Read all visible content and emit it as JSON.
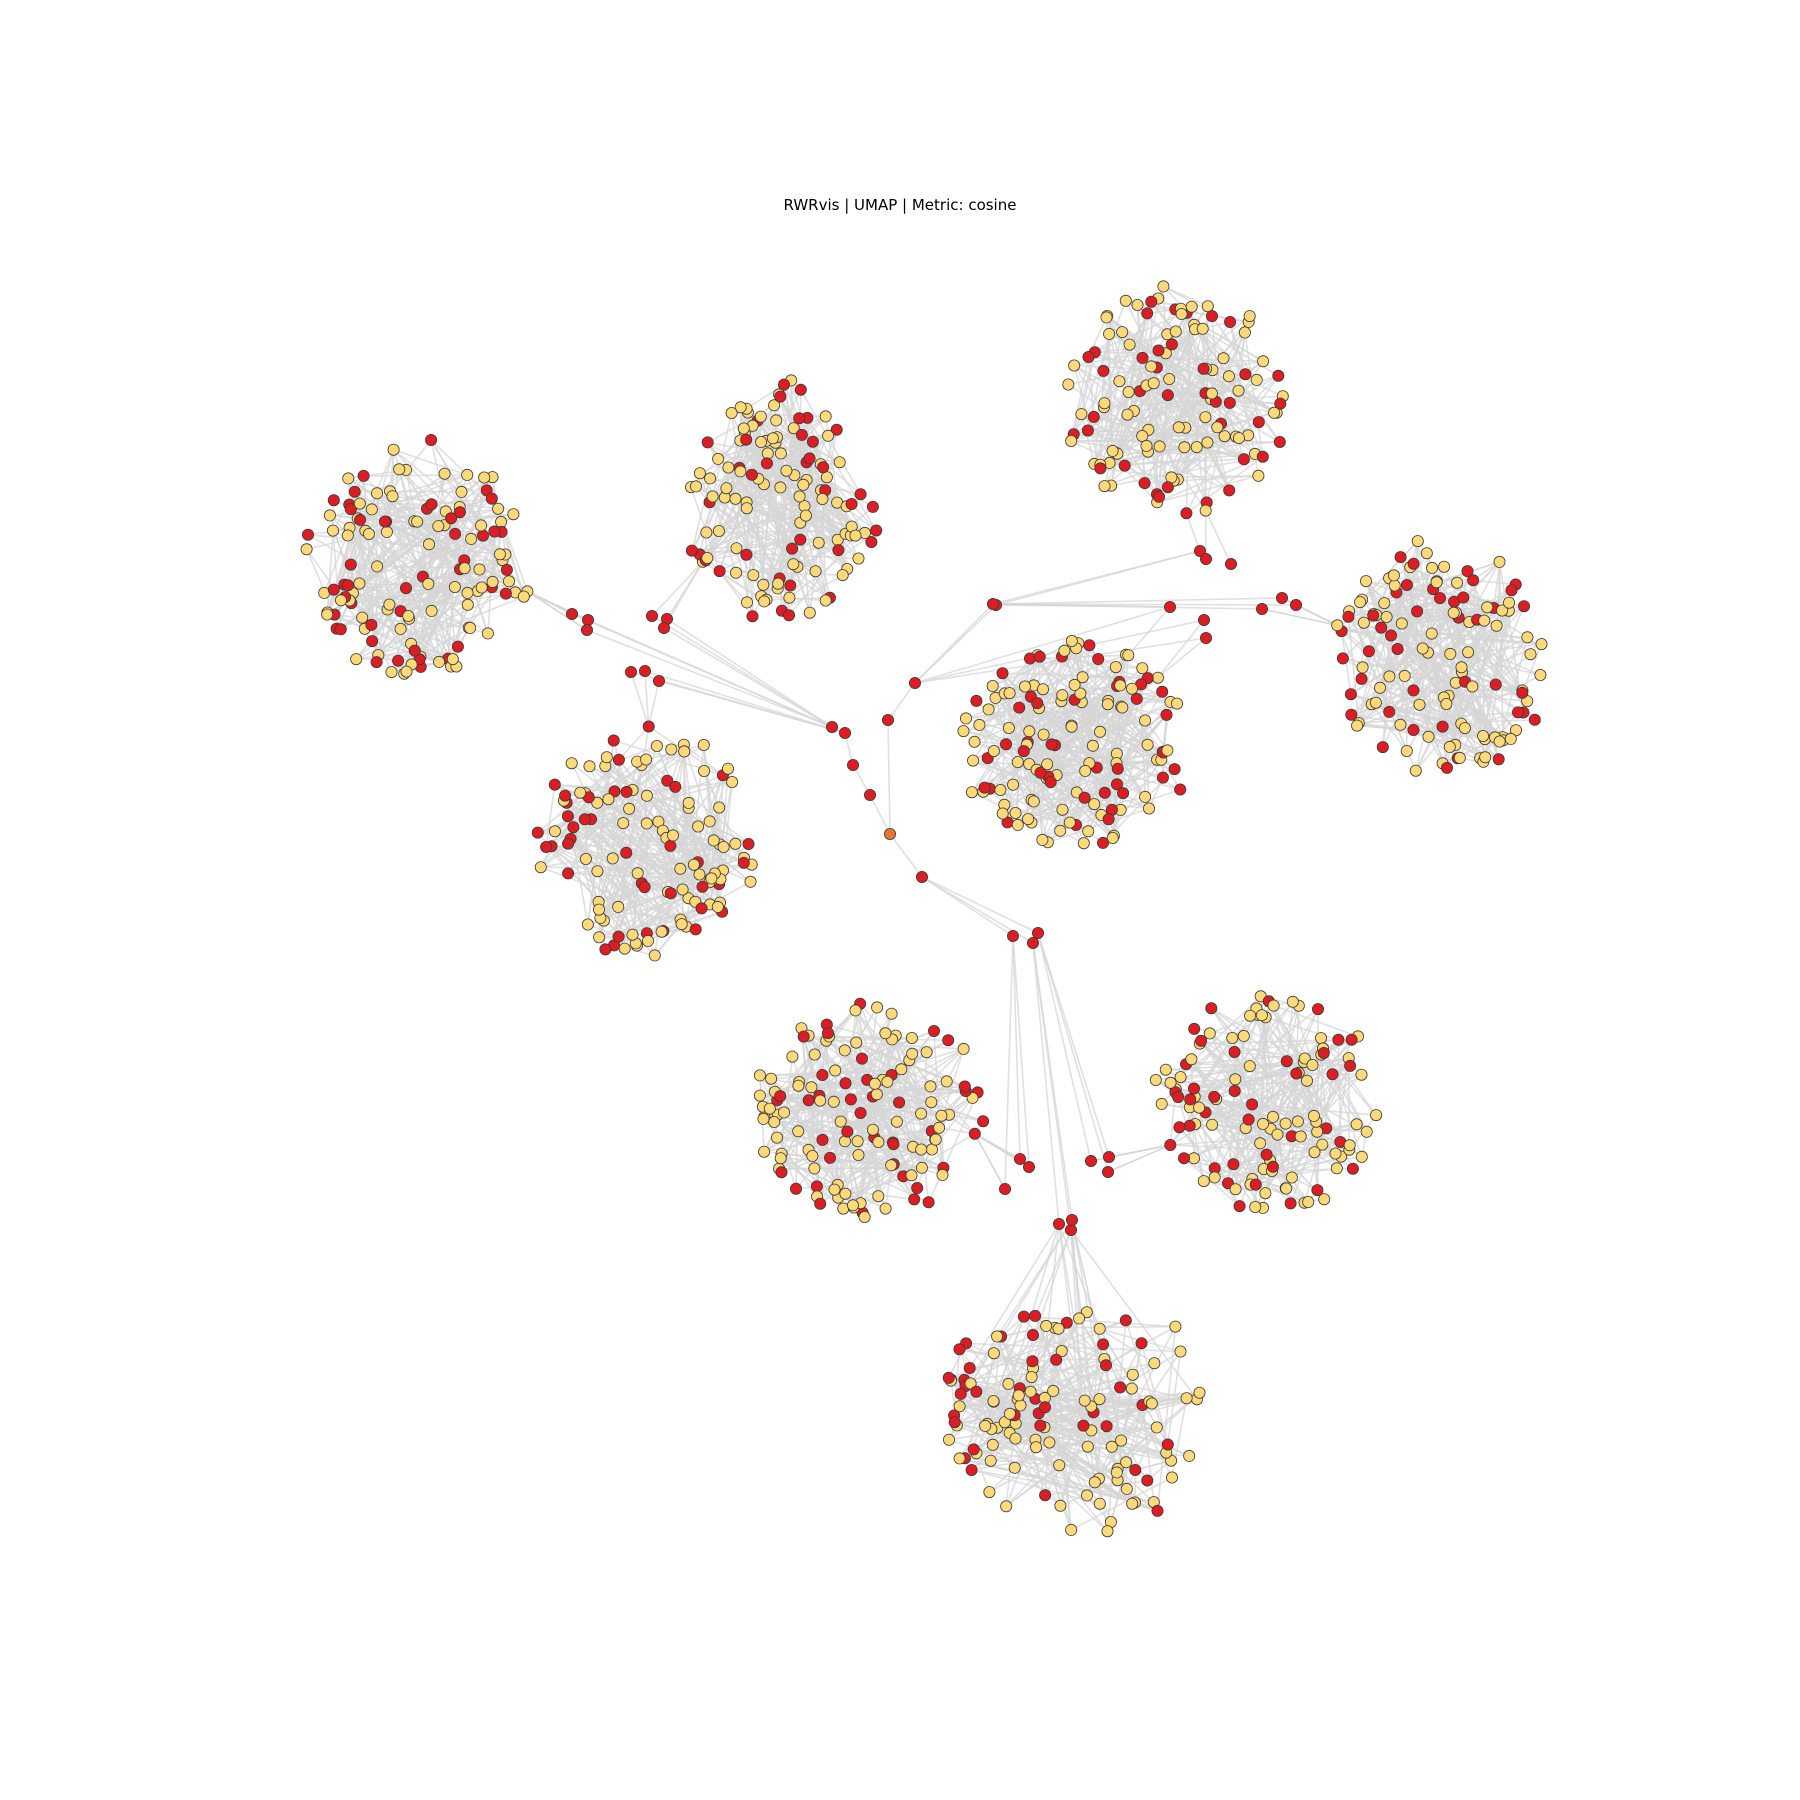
{
  "title": "RWRvis | UMAP | Metric: cosine",
  "colors": {
    "background": "#ffffff",
    "edge": "#d6d6d6",
    "seed_node": "#e8772e",
    "red_node": "#dc1e24",
    "yellow_node": "#fed979",
    "node_outline": "#3a3a3a"
  },
  "graph": {
    "layout": "UMAP",
    "metric": "cosine",
    "node_kinds": [
      "seed",
      "red",
      "yellow"
    ],
    "clusters": [
      {
        "name": "upper-left",
        "red_nodes": 46,
        "yellow_nodes": 82
      },
      {
        "name": "upper-middle",
        "red_nodes": 38,
        "yellow_nodes": 84
      },
      {
        "name": "top-right",
        "red_nodes": 40,
        "yellow_nodes": 78
      },
      {
        "name": "right",
        "red_nodes": 42,
        "yellow_nodes": 80
      },
      {
        "name": "center-right",
        "red_nodes": 44,
        "yellow_nodes": 90
      },
      {
        "name": "middle-left",
        "red_nodes": 40,
        "yellow_nodes": 82
      },
      {
        "name": "lower-left",
        "red_nodes": 42,
        "yellow_nodes": 86
      },
      {
        "name": "lower-right",
        "red_nodes": 40,
        "yellow_nodes": 80
      },
      {
        "name": "bottom",
        "red_nodes": 42,
        "yellow_nodes": 84
      }
    ]
  }
}
